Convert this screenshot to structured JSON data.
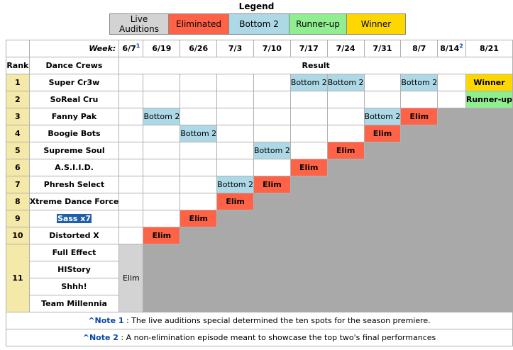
{
  "legend": {
    "title": "Legend",
    "items": [
      {
        "label": "Live Auditions",
        "color": "#d3d3d3"
      },
      {
        "label": "Eliminated",
        "color": "#ff6347"
      },
      {
        "label": "Bottom 2",
        "color": "#add8e6"
      },
      {
        "label": "Runner-up",
        "color": "#90ee90"
      },
      {
        "label": "Winner",
        "color": "#ffd700"
      }
    ]
  },
  "table": {
    "week_label": "Week:",
    "rank_header": "Rank",
    "crew_header": "Dance Crews",
    "result_header": "Result",
    "weeks": [
      {
        "label": "6/7",
        "sup": "1"
      },
      {
        "label": "6/19",
        "sup": ""
      },
      {
        "label": "6/26",
        "sup": ""
      },
      {
        "label": "7/3",
        "sup": ""
      },
      {
        "label": "7/10",
        "sup": ""
      },
      {
        "label": "7/17",
        "sup": ""
      },
      {
        "label": "7/24",
        "sup": ""
      },
      {
        "label": "7/31",
        "sup": ""
      },
      {
        "label": "8/7",
        "sup": ""
      },
      {
        "label": "8/14",
        "sup": "2"
      },
      {
        "label": "8/21",
        "sup": ""
      }
    ],
    "rows": [
      {
        "rank": "1",
        "crew": "Super Cr3w",
        "cells": [
          "",
          "",
          "",
          "",
          "",
          "Bottom 2",
          "Bottom 2",
          "",
          "Bottom 2",
          "",
          "Winner"
        ],
        "types": [
          "n",
          "n",
          "n",
          "n",
          "n",
          "b2",
          "b2",
          "n",
          "b2",
          "n",
          "wn"
        ]
      },
      {
        "rank": "2",
        "crew": "SoReal Cru",
        "cells": [
          "",
          "",
          "",
          "",
          "",
          "",
          "",
          "",
          "",
          "",
          "Runner-up"
        ],
        "types": [
          "n",
          "n",
          "n",
          "n",
          "n",
          "n",
          "n",
          "n",
          "n",
          "n",
          "ru"
        ]
      },
      {
        "rank": "3",
        "crew": "Fanny Pak",
        "cells": [
          "",
          "Bottom 2",
          "",
          "",
          "",
          "",
          "",
          "Bottom 2",
          "Elim",
          "",
          ""
        ],
        "types": [
          "n",
          "b2",
          "n",
          "n",
          "n",
          "n",
          "n",
          "b2",
          "el",
          "g",
          "g"
        ]
      },
      {
        "rank": "4",
        "crew": "Boogie Bots",
        "cells": [
          "",
          "",
          "Bottom 2",
          "",
          "",
          "",
          "",
          "Elim",
          "",
          "",
          ""
        ],
        "types": [
          "n",
          "n",
          "b2",
          "n",
          "n",
          "n",
          "n",
          "el",
          "g",
          "g",
          "g"
        ]
      },
      {
        "rank": "5",
        "crew": "Supreme Soul",
        "cells": [
          "",
          "",
          "",
          "",
          "Bottom 2",
          "",
          "Elim",
          "",
          "",
          "",
          ""
        ],
        "types": [
          "n",
          "n",
          "n",
          "n",
          "b2",
          "n",
          "el",
          "g",
          "g",
          "g",
          "g"
        ]
      },
      {
        "rank": "6",
        "crew": "A.S.I.I.D.",
        "cells": [
          "",
          "",
          "",
          "",
          "",
          "Elim",
          "",
          "",
          "",
          "",
          ""
        ],
        "types": [
          "n",
          "n",
          "n",
          "n",
          "n",
          "el",
          "g",
          "g",
          "g",
          "g",
          "g"
        ]
      },
      {
        "rank": "7",
        "crew": "Phresh Select",
        "cells": [
          "",
          "",
          "",
          "Bottom 2",
          "Elim",
          "",
          "",
          "",
          "",
          "",
          ""
        ],
        "types": [
          "n",
          "n",
          "n",
          "b2",
          "el",
          "g",
          "g",
          "g",
          "g",
          "g",
          "g"
        ]
      },
      {
        "rank": "8",
        "crew": "Xtreme Dance Force",
        "cells": [
          "",
          "",
          "",
          "Elim",
          "",
          "",
          "",
          "",
          "",
          "",
          ""
        ],
        "types": [
          "n",
          "n",
          "n",
          "el",
          "g",
          "g",
          "g",
          "g",
          "g",
          "g",
          "g"
        ]
      },
      {
        "rank": "9",
        "crew": "Sass x7",
        "cells": [
          "",
          "",
          "Elim",
          "",
          "",
          "",
          "",
          "",
          "",
          "",
          ""
        ],
        "types": [
          "n",
          "n",
          "el",
          "g",
          "g",
          "g",
          "g",
          "g",
          "g",
          "g",
          "g"
        ]
      },
      {
        "rank": "10",
        "crew": "Distorted X",
        "cells": [
          "",
          "Elim",
          "",
          "",
          "",
          "",
          "",
          "",
          "",
          "",
          ""
        ],
        "types": [
          "n",
          "el",
          "g",
          "g",
          "g",
          "g",
          "g",
          "g",
          "g",
          "g",
          "g"
        ]
      }
    ],
    "group": {
      "rank": "11",
      "crews": [
        "Full Effect",
        "HIStory",
        "Shhh!",
        "Team Millennia"
      ],
      "result": "Elim"
    },
    "notes": [
      {
        "link": "^Note 1",
        "text": " : The live auditions special determined the ten spots for the season premiere."
      },
      {
        "link": "^Note 2",
        "text": " : A non-elimination episode meant to showcase the top two's final performances"
      }
    ]
  }
}
